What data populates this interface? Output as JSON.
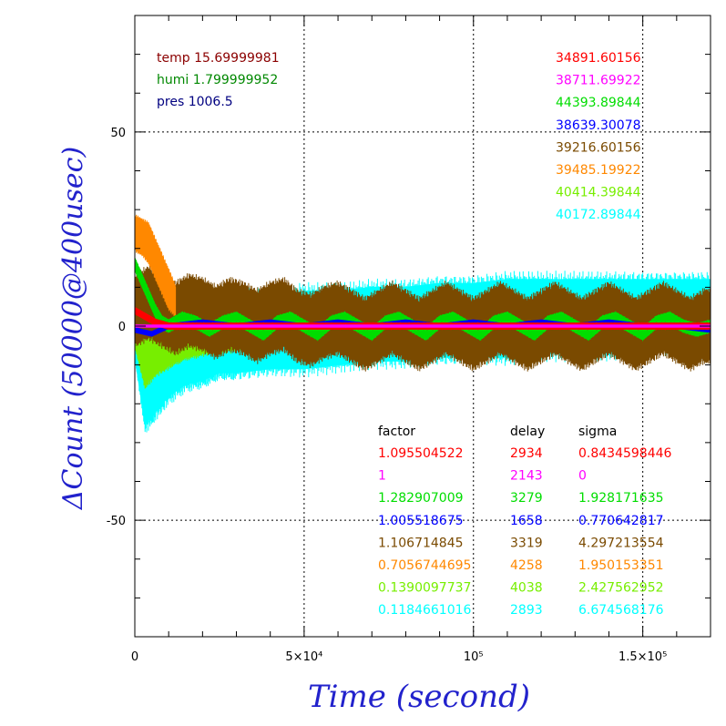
{
  "chart_data": {
    "type": "line",
    "xlabel": "Time (second)",
    "ylabel": "ΔCount (50000@400usec)",
    "label_color": "#2222cc",
    "xlim": [
      0,
      170000
    ],
    "ylim": [
      -80,
      80
    ],
    "x_ticks": [
      {
        "value": 0,
        "label": "0"
      },
      {
        "value": 50000,
        "label": "5×10⁴"
      },
      {
        "value": 100000,
        "label": "10⁵"
      },
      {
        "value": 150000,
        "label": "1.5×10⁵"
      }
    ],
    "y_ticks": [
      {
        "value": -50,
        "label": "-50"
      },
      {
        "value": 0,
        "label": "0"
      },
      {
        "value": 50,
        "label": "50"
      }
    ],
    "grid": "dotted at major ticks",
    "env": [
      {
        "text": "temp 15.69999981",
        "color": "#8b0000"
      },
      {
        "text": "humi 1.799999952",
        "color": "#008800"
      },
      {
        "text": "pres 1006.5",
        "color": "#000080"
      }
    ],
    "series_values": [
      {
        "text": "34891.60156",
        "color": "#ff0000"
      },
      {
        "text": "38711.69922",
        "color": "#ff00ff"
      },
      {
        "text": "44393.89844",
        "color": "#00dd00"
      },
      {
        "text": "38639.30078",
        "color": "#0000ff"
      },
      {
        "text": "39216.60156",
        "color": "#7a4a00"
      },
      {
        "text": "39485.19922",
        "color": "#ff8800"
      },
      {
        "text": "40414.39844",
        "color": "#77ee00"
      },
      {
        "text": "40172.89844",
        "color": "#00ffff"
      }
    ],
    "table_headers": [
      "factor",
      "delay",
      "sigma"
    ],
    "table_rows": [
      {
        "factor": "1.095504522",
        "delay": "2934",
        "sigma": "0.8434598446",
        "color": "#ff0000"
      },
      {
        "factor": "1",
        "delay": "2143",
        "sigma": "0",
        "color": "#ff00ff"
      },
      {
        "factor": "1.282907009",
        "delay": "3279",
        "sigma": "1.928171635",
        "color": "#00dd00"
      },
      {
        "factor": "1.005518675",
        "delay": "1658",
        "sigma": "0.770642817",
        "color": "#0000ff"
      },
      {
        "factor": "1.106714845",
        "delay": "3319",
        "sigma": "4.297213554",
        "color": "#7a4a00"
      },
      {
        "factor": "0.7056744695",
        "delay": "4258",
        "sigma": "1.950153351",
        "color": "#ff8800"
      },
      {
        "factor": "0.1390097737",
        "delay": "4038",
        "sigma": "2.427562952",
        "color": "#77ee00"
      },
      {
        "factor": "0.1184661016",
        "delay": "2893",
        "sigma": "6.674568176",
        "color": "#00ffff"
      }
    ],
    "series": [
      {
        "color": "#00ffff",
        "x": [
          0,
          3000,
          6000,
          10000,
          15000,
          20000,
          25000,
          30000,
          40000,
          50000,
          60000,
          70000,
          80000,
          90000,
          100000,
          110000,
          120000,
          130000,
          140000,
          150000,
          160000,
          170000
        ],
        "low": [
          -8,
          -25,
          -22,
          -18,
          -15,
          -14,
          -12,
          -12,
          -11,
          -11,
          -10,
          -9,
          -9,
          -8,
          -8,
          -8,
          -7,
          -7,
          -7,
          -6,
          -6,
          -7
        ],
        "high": [
          -5,
          0,
          2,
          4,
          5,
          6,
          7,
          8,
          8,
          9,
          9,
          10,
          10,
          11,
          11,
          12,
          12,
          12,
          12,
          12,
          12,
          12
        ]
      },
      {
        "color": "#77ee00",
        "x": [
          0,
          3000,
          6000,
          10000,
          15000,
          20000,
          30000,
          40000,
          50000,
          60000,
          70000,
          80000,
          90000,
          100000,
          120000,
          140000,
          160000,
          170000
        ],
        "low": [
          -5,
          -15,
          -12,
          -10,
          -8,
          -7,
          -6,
          -5,
          -5,
          -4,
          -4,
          -4,
          -3,
          -3,
          -3,
          -3,
          -3,
          -3
        ],
        "high": [
          0,
          -2,
          0,
          1,
          1,
          2,
          2,
          2,
          2,
          2,
          2,
          2,
          2,
          2,
          2,
          2,
          2,
          2
        ]
      },
      {
        "color": "#7a4a00",
        "x": [
          0,
          4000,
          8000,
          12000,
          16000,
          20000,
          24000,
          28000,
          32000,
          36000,
          40000,
          44000,
          48000,
          52000,
          56000,
          60000,
          64000,
          68000,
          72000,
          76000,
          80000,
          84000,
          88000,
          92000,
          96000,
          100000,
          104000,
          108000,
          112000,
          116000,
          120000,
          124000,
          128000,
          132000,
          136000,
          140000,
          144000,
          148000,
          152000,
          156000,
          160000,
          164000,
          168000,
          170000
        ],
        "center": [
          4,
          6,
          4,
          2,
          4,
          3,
          1,
          3,
          2,
          0,
          2,
          3,
          0,
          -1,
          1,
          2,
          0,
          -2,
          0,
          2,
          0,
          -2,
          0,
          2,
          0,
          -2,
          0,
          2,
          0,
          -2,
          0,
          2,
          0,
          -2,
          0,
          2,
          0,
          -2,
          0,
          2,
          0,
          -2,
          0,
          0
        ],
        "halfwidth": 8
      },
      {
        "color": "#ff8800",
        "x": [
          0,
          2000,
          4000,
          6000,
          8000,
          10000,
          12000
        ],
        "low": [
          20,
          19,
          17,
          13,
          9,
          5,
          3
        ],
        "high": [
          28,
          27,
          26,
          22,
          18,
          14,
          10
        ]
      },
      {
        "color": "#00dd00",
        "x": [
          0,
          2000,
          4000,
          6000,
          8000,
          10000,
          14000,
          18000,
          22000,
          26000,
          30000,
          34000,
          38000,
          42000,
          46000,
          50000,
          54000,
          58000,
          62000,
          66000,
          70000,
          74000,
          78000,
          82000,
          86000,
          90000,
          94000,
          98000,
          102000,
          106000,
          110000,
          114000,
          118000,
          122000,
          126000,
          130000,
          134000,
          138000,
          142000,
          146000,
          150000,
          154000,
          158000,
          162000,
          166000,
          170000
        ],
        "center": [
          16,
          12,
          8,
          4,
          1,
          0,
          2,
          1,
          -1,
          1,
          2,
          0,
          -2,
          1,
          2,
          0,
          -2,
          1,
          2,
          0,
          -2,
          1,
          2,
          0,
          -2,
          1,
          2,
          0,
          -2,
          1,
          2,
          0,
          -2,
          1,
          2,
          0,
          -2,
          1,
          2,
          0,
          -2,
          1,
          2,
          0,
          -1,
          0
        ],
        "halfwidth": 1.5
      },
      {
        "color": "#0000ff",
        "x": [
          0,
          5000,
          10000,
          20000,
          30000,
          40000,
          50000,
          60000,
          70000,
          80000,
          90000,
          100000,
          110000,
          120000,
          130000,
          140000,
          150000,
          160000,
          170000
        ],
        "center": [
          -1,
          -2,
          0,
          1,
          0,
          1,
          0,
          1,
          0,
          1,
          0,
          1,
          0,
          1,
          0,
          1,
          0,
          0,
          -1
        ],
        "halfwidth": 0.6
      },
      {
        "color": "#ff0000",
        "x": [
          0,
          2000,
          4000,
          6000,
          8000,
          10000,
          14000,
          20000,
          30000,
          40000,
          50000,
          60000,
          70000,
          80000,
          90000,
          100000,
          110000,
          120000,
          130000,
          140000,
          150000,
          160000,
          170000
        ],
        "center": [
          4,
          3,
          2,
          1,
          0.5,
          0,
          0,
          0,
          0,
          0,
          0,
          0,
          0,
          0,
          0,
          0,
          0,
          0,
          0,
          0,
          0,
          0,
          0
        ],
        "halfwidth": 0.8
      },
      {
        "color": "#ff00ff",
        "x": [
          0,
          170000
        ],
        "center": [
          0,
          0
        ],
        "halfwidth": 0.3
      }
    ]
  }
}
